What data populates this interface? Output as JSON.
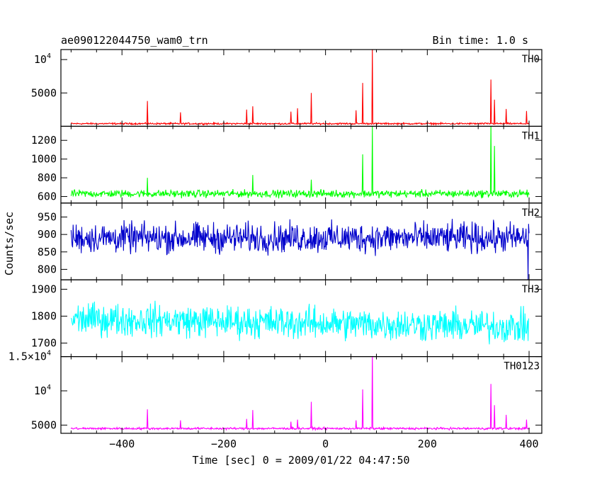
{
  "header": {
    "title": "ae090122044750_wam0_trn",
    "bin_time": "Bin time: 1.0 s"
  },
  "chart_data": {
    "type": "line",
    "xlabel": "Time [sec] 0 = 2009/01/22 04:47:50",
    "ylabel": "Counts/sec",
    "xlim": [
      -520,
      425
    ],
    "x_ticks": [
      -400,
      -200,
      0,
      200,
      400
    ],
    "x_tick_labels": [
      "−400",
      "−200",
      "0",
      "200",
      "400"
    ],
    "data_range": [
      -500,
      400
    ],
    "bin_time_s": 1.0,
    "grid": false,
    "panels": [
      {
        "label": "TH0",
        "color": "#ff0000",
        "ylim": [
          0,
          11500
        ],
        "y_ticks": [
          5000,
          10000
        ],
        "y_tick_labels": [
          {
            "text": "5000",
            "exp": ""
          },
          {
            "text": "10",
            "exp": "4"
          }
        ],
        "baseline": 400,
        "noise": 90,
        "spikes": [
          [
            -350,
            3800
          ],
          [
            -285,
            2100
          ],
          [
            -155,
            2500
          ],
          [
            -143,
            3000
          ],
          [
            -68,
            2200
          ],
          [
            -55,
            2700
          ],
          [
            -28,
            5000
          ],
          [
            60,
            2400
          ],
          [
            73,
            6500
          ],
          [
            92,
            12000
          ],
          [
            325,
            7000
          ],
          [
            332,
            4000
          ],
          [
            355,
            2600
          ],
          [
            395,
            2300
          ]
        ]
      },
      {
        "label": "TH1",
        "color": "#00ff00",
        "ylim": [
          530,
          1350
        ],
        "y_ticks": [
          600,
          800,
          1000,
          1200
        ],
        "y_tick_labels": [
          {
            "text": "600",
            "exp": ""
          },
          {
            "text": "800",
            "exp": ""
          },
          {
            "text": "1000",
            "exp": ""
          },
          {
            "text": "1200",
            "exp": ""
          }
        ],
        "baseline": 630,
        "noise": 28,
        "spikes": [
          [
            -350,
            800
          ],
          [
            -143,
            830
          ],
          [
            -28,
            780
          ],
          [
            73,
            1050
          ],
          [
            92,
            1350
          ],
          [
            325,
            1400
          ],
          [
            332,
            1140
          ]
        ]
      },
      {
        "label": "TH2",
        "color": "#0000cc",
        "ylim": [
          770,
          990
        ],
        "y_ticks": [
          800,
          850,
          900,
          950
        ],
        "y_tick_labels": [
          {
            "text": "800",
            "exp": ""
          },
          {
            "text": "850",
            "exp": ""
          },
          {
            "text": "900",
            "exp": ""
          },
          {
            "text": "950",
            "exp": ""
          }
        ],
        "baseline": 890,
        "noise": 30,
        "spikes": [
          [
            398,
            770
          ]
        ]
      },
      {
        "label": "TH3",
        "color": "#00ffff",
        "ylim": [
          1650,
          1935
        ],
        "y_ticks": [
          1700,
          1800,
          1900
        ],
        "y_tick_labels": [
          {
            "text": "1700",
            "exp": ""
          },
          {
            "text": "1800",
            "exp": ""
          },
          {
            "text": "1900",
            "exp": ""
          }
        ],
        "baseline": 1790,
        "noise": 42,
        "trend": -30,
        "spikes": []
      },
      {
        "label": "TH0123",
        "color": "#ff00ff",
        "ylim": [
          3800,
          15000
        ],
        "y_ticks": [
          5000,
          10000,
          15000
        ],
        "y_tick_labels": [
          {
            "text": "5000",
            "exp": ""
          },
          {
            "text": "10",
            "exp": "4"
          },
          {
            "text": "1.5×10",
            "exp": "4"
          }
        ],
        "baseline": 4500,
        "noise": 110,
        "spikes": [
          [
            -350,
            7300
          ],
          [
            -285,
            5700
          ],
          [
            -155,
            5900
          ],
          [
            -143,
            7200
          ],
          [
            -68,
            5500
          ],
          [
            -55,
            5800
          ],
          [
            -28,
            8400
          ],
          [
            60,
            5700
          ],
          [
            73,
            10200
          ],
          [
            92,
            16000
          ],
          [
            325,
            11000
          ],
          [
            332,
            7900
          ],
          [
            355,
            6500
          ],
          [
            395,
            5800
          ]
        ]
      }
    ]
  }
}
